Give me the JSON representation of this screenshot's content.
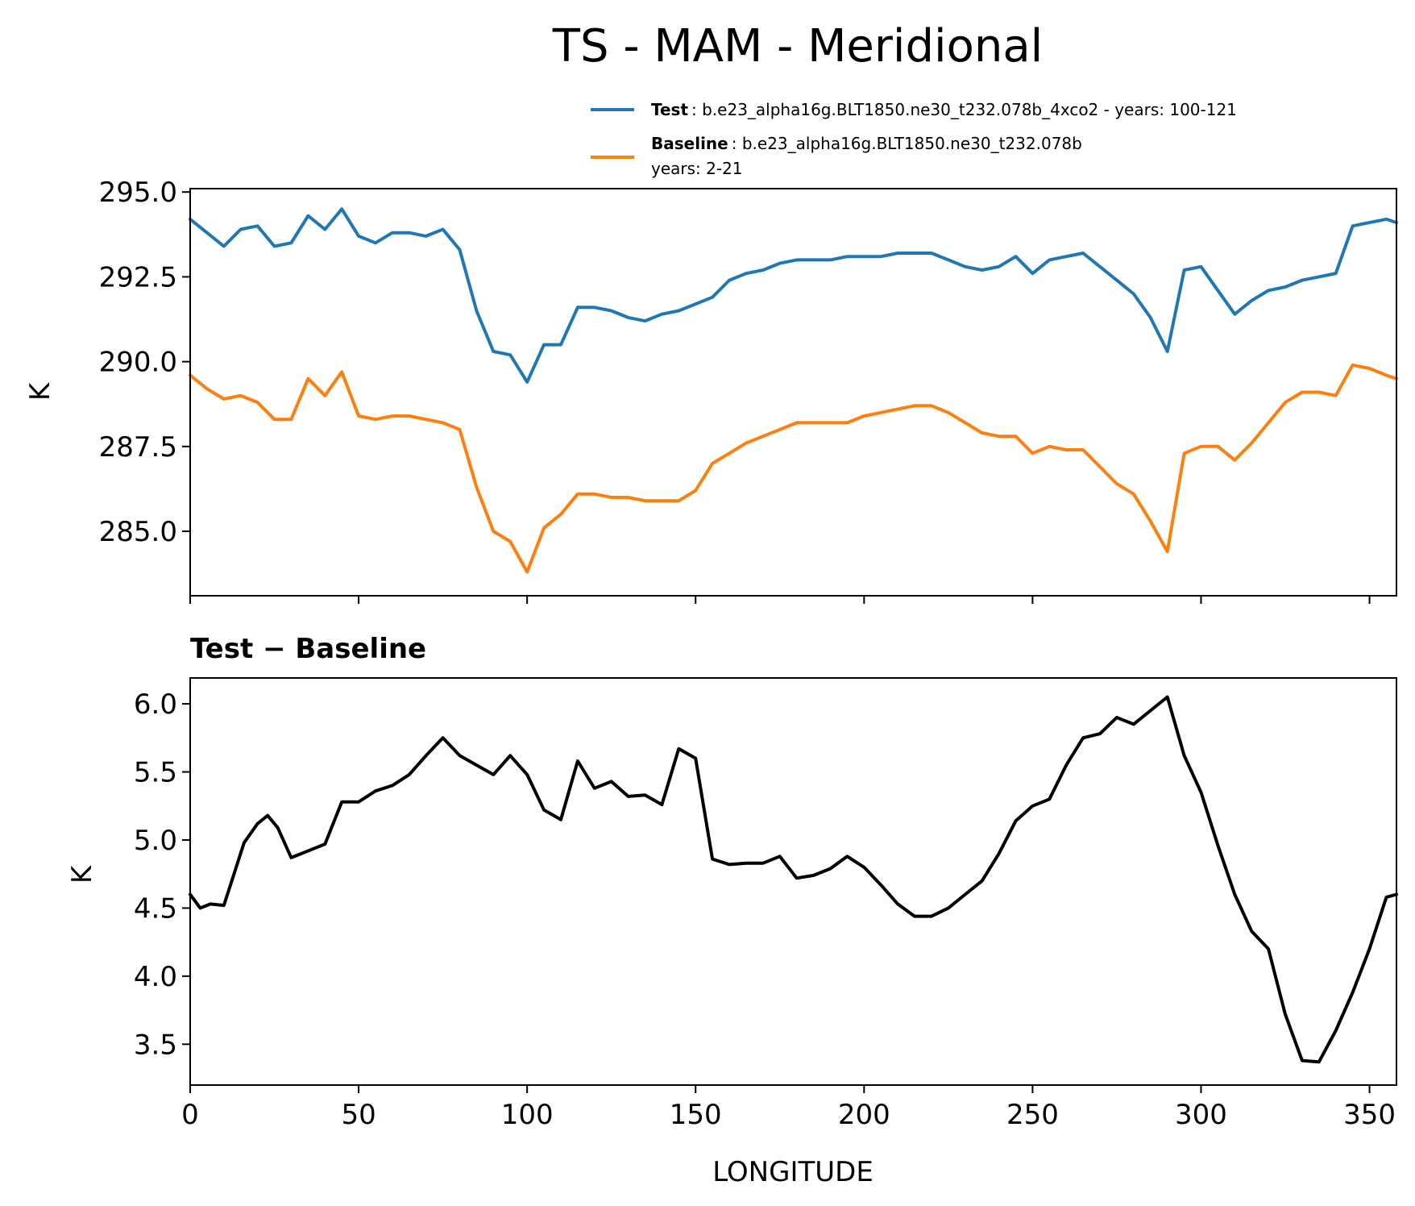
{
  "chart_data": [
    {
      "type": "line",
      "title": "TS - MAM - Meridional",
      "xlabel": "",
      "ylabel": "K",
      "xlim": [
        0,
        358
      ],
      "ylim": [
        283.1,
        295.1
      ],
      "yticks": [
        295.0,
        292.5,
        290.0,
        287.5,
        285.0
      ],
      "ytick_labels": [
        "295.0",
        "292.5",
        "290.0",
        "287.5",
        "285.0"
      ],
      "xticks": [
        0,
        50,
        100,
        150,
        200,
        250,
        300,
        350
      ],
      "legend": {
        "placement": "top-right",
        "entries": [
          {
            "name": "Test",
            "text": ": b.e23_alpha16g.BLT1850.ne30_t232.078b_4xco2 - years: 100-121",
            "color": "#1f77b4"
          },
          {
            "name": "Baseline",
            "text": ": b.e23_alpha16g.BLT1850.ne30_t232.078b",
            "text2": "years: 2-21",
            "color": "#ff7f0e"
          }
        ]
      },
      "x": [
        0,
        5,
        10,
        15,
        20,
        25,
        30,
        35,
        40,
        45,
        50,
        55,
        60,
        65,
        70,
        75,
        80,
        85,
        90,
        95,
        100,
        105,
        110,
        115,
        120,
        125,
        130,
        135,
        140,
        145,
        150,
        155,
        160,
        165,
        170,
        175,
        180,
        185,
        190,
        195,
        200,
        205,
        210,
        215,
        220,
        225,
        230,
        235,
        240,
        245,
        250,
        255,
        260,
        265,
        270,
        275,
        280,
        285,
        290,
        295,
        300,
        305,
        310,
        315,
        320,
        325,
        330,
        335,
        340,
        345,
        350,
        355,
        358
      ],
      "series": [
        {
          "name": "Test",
          "color": "#1f77b4",
          "values": [
            294.2,
            293.8,
            293.4,
            293.9,
            294.0,
            293.4,
            293.5,
            294.3,
            293.9,
            294.5,
            293.7,
            293.5,
            293.8,
            293.8,
            293.7,
            293.9,
            293.3,
            291.5,
            290.3,
            290.2,
            289.4,
            290.5,
            290.5,
            291.6,
            291.6,
            291.5,
            291.3,
            291.2,
            291.4,
            291.5,
            291.7,
            291.9,
            292.4,
            292.6,
            292.7,
            292.9,
            293.0,
            293.0,
            293.0,
            293.1,
            293.1,
            293.1,
            293.2,
            293.2,
            293.2,
            293.0,
            292.8,
            292.7,
            292.8,
            293.1,
            292.6,
            293.0,
            293.1,
            293.2,
            292.8,
            292.4,
            292.0,
            291.3,
            290.3,
            292.7,
            292.8,
            292.1,
            291.4,
            291.8,
            292.1,
            292.2,
            292.4,
            292.5,
            292.6,
            294.0,
            294.1,
            294.2,
            294.1
          ]
        },
        {
          "name": "Baseline",
          "color": "#ff7f0e",
          "values": [
            289.6,
            289.2,
            288.9,
            289.0,
            288.8,
            288.3,
            288.3,
            289.5,
            289.0,
            289.7,
            288.4,
            288.3,
            288.4,
            288.4,
            288.3,
            288.2,
            288.0,
            286.3,
            285.0,
            284.7,
            283.8,
            285.1,
            285.5,
            286.1,
            286.1,
            286.0,
            286.0,
            285.9,
            285.9,
            285.9,
            286.2,
            287.0,
            287.3,
            287.6,
            287.8,
            288.0,
            288.2,
            288.2,
            288.2,
            288.2,
            288.4,
            288.5,
            288.6,
            288.7,
            288.7,
            288.5,
            288.2,
            287.9,
            287.8,
            287.8,
            287.3,
            287.5,
            287.4,
            287.4,
            286.9,
            286.4,
            286.1,
            285.3,
            284.4,
            287.3,
            287.5,
            287.5,
            287.1,
            287.6,
            288.2,
            288.8,
            289.1,
            289.1,
            289.0,
            289.9,
            289.8,
            289.6,
            289.5
          ]
        }
      ]
    },
    {
      "type": "line",
      "title": "Test − Baseline",
      "xlabel": "LONGITUDE",
      "ylabel": "K",
      "xlim": [
        0,
        358
      ],
      "ylim": [
        3.2,
        6.19
      ],
      "yticks": [
        6.0,
        5.5,
        5.0,
        4.5,
        4.0,
        3.5
      ],
      "ytick_labels": [
        "6.0",
        "5.5",
        "5.0",
        "4.5",
        "4.0",
        "3.5"
      ],
      "xticks": [
        0,
        50,
        100,
        150,
        200,
        250,
        300,
        350
      ],
      "xtick_labels": [
        "0",
        "50",
        "100",
        "150",
        "200",
        "250",
        "300",
        "350"
      ],
      "x": [
        0,
        3,
        6,
        10,
        13,
        16,
        20,
        23,
        26,
        30,
        33,
        36,
        40,
        45,
        50,
        55,
        60,
        65,
        70,
        75,
        80,
        85,
        90,
        95,
        100,
        105,
        110,
        115,
        120,
        125,
        130,
        135,
        140,
        145,
        150,
        155,
        160,
        165,
        170,
        175,
        180,
        185,
        190,
        195,
        200,
        205,
        210,
        215,
        220,
        225,
        230,
        235,
        240,
        245,
        250,
        255,
        260,
        265,
        270,
        275,
        280,
        285,
        290,
        295,
        300,
        305,
        310,
        315,
        320,
        325,
        330,
        335,
        340,
        345,
        350,
        355,
        358
      ],
      "series": [
        {
          "name": "Test - Baseline",
          "color": "#000000",
          "values": [
            4.6,
            4.5,
            4.53,
            4.52,
            4.75,
            4.98,
            5.12,
            5.18,
            5.09,
            4.87,
            4.9,
            4.93,
            4.97,
            5.28,
            5.28,
            5.36,
            5.4,
            5.48,
            5.62,
            5.75,
            5.62,
            5.55,
            5.48,
            5.62,
            5.48,
            5.22,
            5.15,
            5.58,
            5.38,
            5.43,
            5.32,
            5.33,
            5.26,
            5.67,
            5.6,
            4.86,
            4.82,
            4.83,
            4.83,
            4.88,
            4.72,
            4.74,
            4.79,
            4.88,
            4.8,
            4.67,
            4.53,
            4.44,
            4.44,
            4.5,
            4.6,
            4.7,
            4.9,
            5.14,
            5.25,
            5.3,
            5.55,
            5.75,
            5.78,
            5.9,
            5.85,
            5.95,
            6.05,
            5.62,
            5.35,
            4.96,
            4.6,
            4.33,
            4.2,
            3.72,
            3.38,
            3.37,
            3.6,
            3.88,
            4.2,
            4.58,
            4.6
          ]
        }
      ]
    }
  ]
}
